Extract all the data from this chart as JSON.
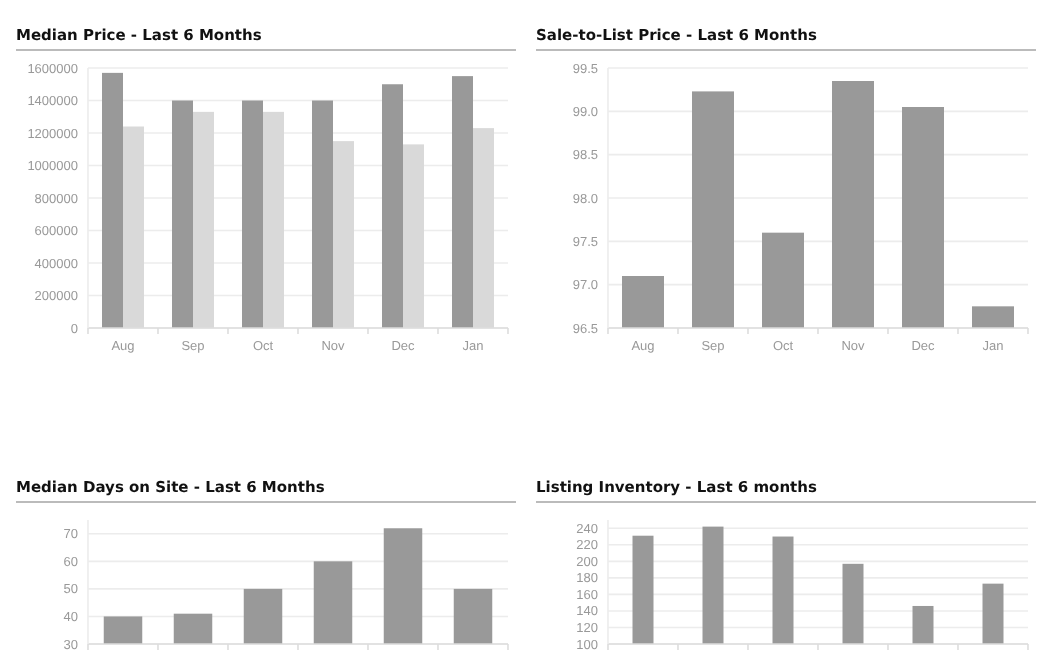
{
  "chart_data": [
    {
      "type": "bar",
      "title": "Median Price - Last 6 Months",
      "categories": [
        "Aug",
        "Sep",
        "Oct",
        "Nov",
        "Dec",
        "Jan"
      ],
      "series": [
        {
          "color": "#999999",
          "values": [
            1570000,
            1400000,
            1400000,
            1400000,
            1500000,
            1550000
          ]
        },
        {
          "color": "#d9d9d9",
          "values": [
            1240000,
            1330000,
            1330000,
            1150000,
            1130000,
            1230000
          ]
        }
      ],
      "ylim": [
        0,
        1600000
      ],
      "yticks": [
        0,
        200000,
        400000,
        600000,
        800000,
        1000000,
        1200000,
        1400000,
        1600000
      ],
      "grid": "y"
    },
    {
      "type": "bar",
      "title": "Sale-to-List Price - Last 6 Months",
      "categories": [
        "Aug",
        "Sep",
        "Oct",
        "Nov",
        "Dec",
        "Jan"
      ],
      "series": [
        {
          "color": "#999999",
          "values": [
            97.1,
            99.23,
            97.6,
            99.35,
            99.05,
            96.75
          ]
        }
      ],
      "ylim": [
        96.5,
        99.5
      ],
      "yticks": [
        {
          "value": 96.5,
          "label": "96.5"
        },
        {
          "value": 97,
          "label": "97.0"
        },
        {
          "value": 97.5,
          "label": "97.5"
        },
        {
          "value": 98,
          "label": "98.0"
        },
        {
          "value": 98.5,
          "label": "98.5"
        },
        {
          "value": 99,
          "label": "99.0"
        },
        {
          "value": 99.5,
          "label": "99.5"
        }
      ],
      "grid": "y"
    },
    {
      "type": "bar",
      "title": "Median Days on Site - Last 6 Months",
      "categories": [
        null,
        null,
        null,
        null,
        null,
        null
      ],
      "series": [
        {
          "color": "#999999",
          "values": [
            40,
            41,
            50,
            60,
            72,
            50
          ]
        }
      ],
      "ylim": [
        30,
        75
      ],
      "yticks": [
        30,
        40,
        50,
        60,
        70
      ],
      "grid": "y"
    },
    {
      "type": "bar",
      "title": "Listing Inventory - Last 6 months",
      "categories": [
        null,
        null,
        null,
        null,
        null,
        null
      ],
      "series": [
        {
          "color": "#999999",
          "values": [
            231,
            242,
            230,
            197,
            146,
            173
          ]
        }
      ],
      "ylim": [
        100,
        250
      ],
      "yticks": [
        100,
        120,
        140,
        160,
        180,
        200,
        220,
        240
      ],
      "grid": "y"
    }
  ]
}
